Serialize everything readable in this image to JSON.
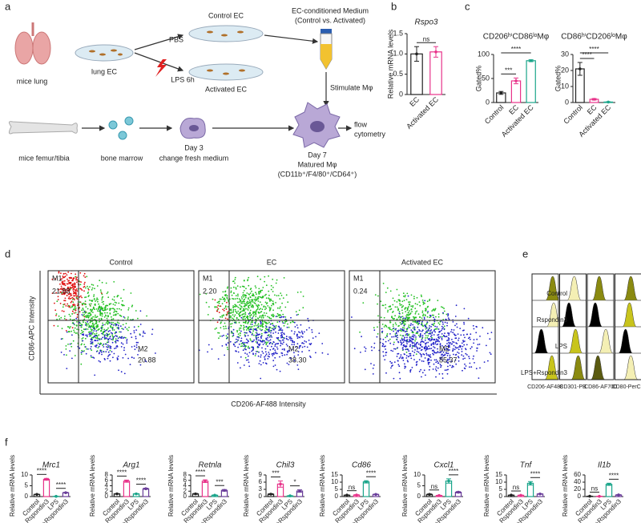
{
  "panels": [
    "a",
    "b",
    "c",
    "d",
    "e",
    "f"
  ],
  "diagram": {
    "mice_lung": "mice lung",
    "lung_ec": "lung EC",
    "pbs": "PBS",
    "lps": "LPS 6h",
    "control_ec": "Control EC",
    "activated_ec": "Activated EC",
    "medium": "EC-conditioned Medium",
    "medium_note": "(Control vs. Activated)",
    "stimulate": "Stimulate Mφ",
    "femur": "mice femur/tibia",
    "marrow": "bone marrow",
    "day3": "Day 3",
    "change": "change fresh medium",
    "day7": "Day 7",
    "matured": "Matured Mφ",
    "markers": "(CD11b⁺/F4/80⁺/CD64⁺)",
    "flow": "flow",
    "cytometry": "cytometry"
  },
  "chart_data": [
    {
      "type": "bar",
      "title": "Rspo3",
      "italic": true,
      "ylabel": "Relative mRNA levels",
      "categories": [
        "EC",
        "Activated EC"
      ],
      "values": [
        1.0,
        1.05
      ],
      "errors": [
        0.18,
        0.13
      ],
      "colors": [
        "#222222",
        "#e8338a"
      ],
      "ylim": [
        0,
        1.5
      ],
      "yticks": [
        0,
        0.5,
        {
          "value": 1,
          "label": "1.0"
        },
        1.5
      ],
      "annotations": [
        "ns"
      ]
    },
    {
      "type": "bar",
      "title": "CD206ʰⁱCD86ˡᵒMφ",
      "italic": false,
      "ylabel": "Gated%",
      "categories": [
        "Control",
        "EC",
        "Activated EC"
      ],
      "values": [
        20,
        45,
        87
      ],
      "errors": [
        3,
        6,
        2
      ],
      "colors": [
        "#222222",
        "#e8338a",
        "#1aa58a"
      ],
      "ylim": [
        0,
        100
      ],
      "yticks": [
        0,
        50,
        100
      ],
      "annotations": [
        "***",
        "****"
      ]
    },
    {
      "type": "bar",
      "title": "CD86ʰⁱCD206ˡᵒMφ",
      "italic": false,
      "ylabel": "Gated%",
      "categories": [
        "Control",
        "EC",
        "Activated EC"
      ],
      "values": [
        21,
        2,
        0.3
      ],
      "errors": [
        4,
        0.5,
        0.2
      ],
      "colors": [
        "#222222",
        "#e8338a",
        "#1aa58a"
      ],
      "ylim": [
        0,
        30
      ],
      "yticks": [
        0,
        10,
        20,
        30
      ],
      "annotations": [
        "****",
        "****"
      ]
    },
    {
      "type": "bar",
      "title": "Mrc1",
      "italic": true,
      "ylabel": "Relative mRNA levels",
      "categories": [
        "Control",
        "Rspondin3",
        "LPS",
        "LPS+Rspondin3"
      ],
      "values": [
        1,
        8,
        0.1,
        1.8
      ],
      "errors": [
        0.1,
        0.4,
        0.05,
        0.15
      ],
      "colors": [
        "#222222",
        "#e8338a",
        "#1aa58a",
        "#6a3d9a"
      ],
      "ylim": [
        0,
        10
      ],
      "yticks": [
        0,
        5,
        10
      ],
      "annotations": [
        "****",
        "****"
      ]
    },
    {
      "type": "bar",
      "title": "Arg1",
      "italic": true,
      "ylabel": "Relative mRNA levels",
      "categories": [
        "Control",
        "Rspondin3",
        "LPS",
        "LPS+Rspondin3"
      ],
      "values": [
        1,
        5.7,
        1,
        2.9
      ],
      "errors": [
        0.1,
        0.4,
        0.1,
        0.2
      ],
      "colors": [
        "#222222",
        "#e8338a",
        "#1aa58a",
        "#6a3d9a"
      ],
      "ylim": [
        0,
        8
      ],
      "yticks": [
        0,
        2,
        4,
        6,
        8
      ],
      "annotations": [
        "****",
        "****"
      ]
    },
    {
      "type": "bar",
      "title": "Retnla",
      "italic": true,
      "ylabel": "Relative mRNA levels",
      "categories": [
        "Control",
        "Rspondin3",
        "LPS",
        "LPS+Rspondin3"
      ],
      "values": [
        1,
        5.7,
        0.5,
        2.3
      ],
      "errors": [
        0.15,
        0.5,
        0.1,
        0.3
      ],
      "colors": [
        "#222222",
        "#e8338a",
        "#1aa58a",
        "#6a3d9a"
      ],
      "ylim": [
        0,
        8
      ],
      "yticks": [
        0,
        2,
        4,
        6,
        8
      ],
      "annotations": [
        "****",
        "***"
      ]
    },
    {
      "type": "bar",
      "title": "Chil3",
      "italic": true,
      "ylabel": "Relative mRNA levels",
      "categories": [
        "Control",
        "Rspondin3",
        "LPS",
        "LPS+Rspondin3"
      ],
      "values": [
        1,
        5.2,
        0.3,
        2.3
      ],
      "errors": [
        0.2,
        1.3,
        0.1,
        0.5
      ],
      "colors": [
        "#222222",
        "#e8338a",
        "#1aa58a",
        "#6a3d9a"
      ],
      "ylim": [
        0,
        9
      ],
      "yticks": [
        0,
        3,
        6,
        9
      ],
      "annotations": [
        "***",
        "*"
      ]
    },
    {
      "type": "bar",
      "title": "Cd86",
      "italic": true,
      "ylabel": "Relative mRNA levels",
      "categories": [
        "Control",
        "Rspondin3",
        "LPS",
        "LPS+Rspondin3"
      ],
      "values": [
        1,
        1.1,
        10.2,
        1.5
      ],
      "errors": [
        0.1,
        0.2,
        0.8,
        0.2
      ],
      "colors": [
        "#222222",
        "#e8338a",
        "#1aa58a",
        "#6a3d9a"
      ],
      "ylim": [
        0,
        15
      ],
      "yticks": [
        0,
        5,
        10,
        15
      ],
      "annotations": [
        "ns",
        "****"
      ]
    },
    {
      "type": "bar",
      "title": "Cxcl1",
      "italic": true,
      "ylabel": "Relative mRNA levels",
      "categories": [
        "Control",
        "Rspondin3",
        "LPS",
        "LPS+Rspondin3"
      ],
      "values": [
        1,
        0.5,
        7.2,
        2
      ],
      "errors": [
        0.2,
        0.1,
        1,
        0.3
      ],
      "colors": [
        "#222222",
        "#e8338a",
        "#1aa58a",
        "#6a3d9a"
      ],
      "ylim": [
        0,
        10
      ],
      "yticks": [
        0,
        5,
        10
      ],
      "annotations": [
        "ns",
        "****"
      ]
    },
    {
      "type": "bar",
      "title": "Tnf",
      "italic": true,
      "ylabel": "Relative mRNA levels",
      "categories": [
        "Control",
        "Rspondin3",
        "LPS",
        "LPS+Rspondin3"
      ],
      "values": [
        1,
        0.9,
        9.2,
        1.8
      ],
      "errors": [
        0.1,
        0.1,
        1.2,
        0.2
      ],
      "colors": [
        "#222222",
        "#e8338a",
        "#1aa58a",
        "#6a3d9a"
      ],
      "ylim": [
        0,
        15
      ],
      "yticks": [
        0,
        5,
        10,
        15
      ],
      "annotations": [
        "ns",
        "****"
      ]
    },
    {
      "type": "bar",
      "title": "Il1b",
      "italic": true,
      "ylabel": "Relative mRNA levels",
      "categories": [
        "Control",
        "Rspondin3",
        "LPS",
        "LPS+Rspondin3"
      ],
      "values": [
        1,
        0.8,
        34,
        4.5
      ],
      "errors": [
        0.2,
        0.2,
        3,
        0.8
      ],
      "colors": [
        "#222222",
        "#e8338a",
        "#1aa58a",
        "#6a3d9a"
      ],
      "ylim": [
        0,
        60
      ],
      "yticks": [
        0,
        20,
        40,
        60
      ],
      "annotations": [
        "ns",
        "****"
      ]
    }
  ],
  "flow": {
    "ylabel": "CD86-APC Intensity",
    "xlabel": "CD206-AF488 Intensity",
    "plots": [
      {
        "title": "Control",
        "m1_name": "M1",
        "m1": "21.88",
        "m2_name": "M2",
        "m2": "20.88"
      },
      {
        "title": "EC",
        "m1_name": "M1",
        "m1": "2.20",
        "m2_name": "M2",
        "m2": "38.30"
      },
      {
        "title": "Activated EC",
        "m1_name": "M1",
        "m1": "0.24",
        "m2_name": "M2",
        "m2": "85.37"
      }
    ]
  },
  "histograms": {
    "rows": [
      "Control",
      "Rspondin3",
      "LPS",
      "LPS+Rspondin3"
    ],
    "columns": [
      "CD206-AF488",
      "CD301-PB",
      "CD86-AF700",
      "CD80-PerCP"
    ]
  }
}
